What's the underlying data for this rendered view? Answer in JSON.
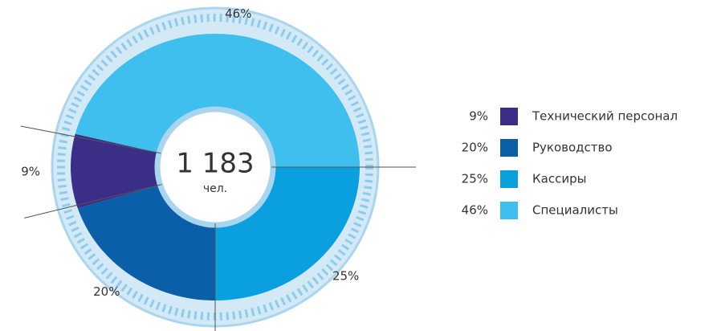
{
  "chart_data": {
    "type": "pie",
    "center_label": "1 183",
    "center_sublabel": "чел.",
    "series": [
      {
        "name": "Технический персонал",
        "color": "#3a2e86",
        "value": 9,
        "value_label": "9%"
      },
      {
        "name": "Руководство",
        "color": "#0b5ea8",
        "value": 20,
        "value_label": "20%"
      },
      {
        "name": "Кассиры",
        "color": "#0aa0e0",
        "value": 25,
        "value_label": "25%"
      },
      {
        "name": "Специалисты",
        "color": "#3fbfee",
        "value": 46,
        "value_label": "46%"
      }
    ],
    "legend": "right"
  }
}
